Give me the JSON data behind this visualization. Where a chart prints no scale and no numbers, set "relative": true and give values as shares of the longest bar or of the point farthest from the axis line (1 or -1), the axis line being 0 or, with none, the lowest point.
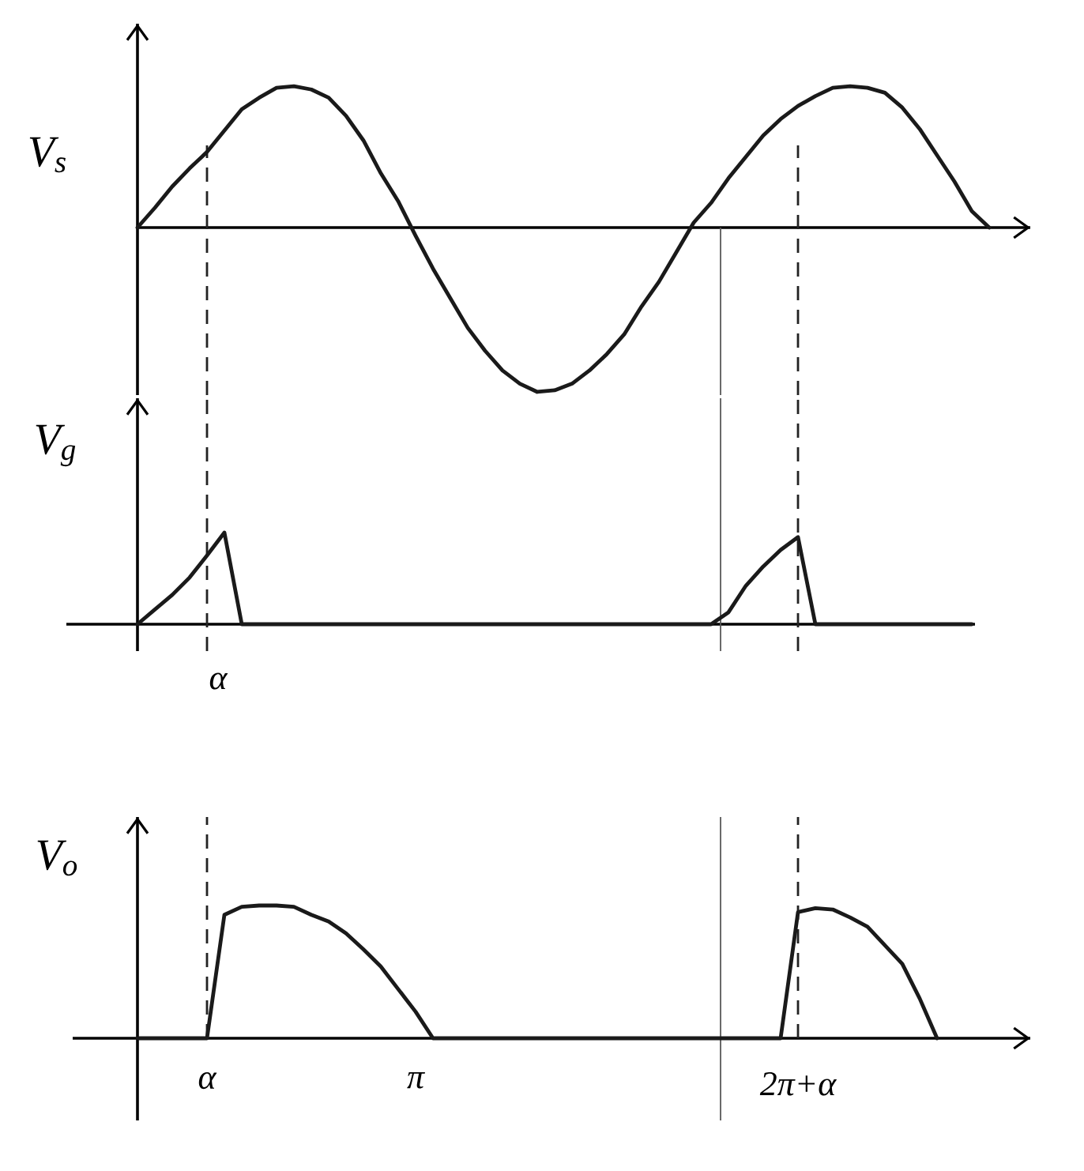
{
  "chart_data": [
    {
      "type": "line",
      "ylabel": "V$_{s}$",
      "relative": true,
      "tick_labels": false,
      "categories": [
        null,
        null,
        null,
        null,
        "α",
        null,
        null,
        null,
        null,
        null,
        null,
        null,
        null,
        null,
        null,
        null,
        "π",
        null,
        null,
        null,
        null,
        null,
        null,
        null,
        null,
        null,
        null,
        null,
        null,
        null,
        null,
        null,
        null,
        null,
        null,
        null,
        null,
        null,
        "2π+α",
        null,
        null,
        null,
        null,
        null,
        null,
        null,
        null,
        null,
        null,
        null,
        null,
        null
      ],
      "series": [
        {
          "color": "#1a1a1a",
          "values": [
            0,
            0.12,
            0.25,
            0.36,
            0.46,
            0.59,
            0.72,
            0.79,
            0.85,
            0.86,
            0.84,
            0.79,
            0.68,
            0.53,
            0.33,
            0.16,
            -0.05,
            -0.25,
            -0.43,
            -0.61,
            -0.75,
            -0.87,
            -0.95,
            -1,
            -0.99,
            -0.95,
            -0.87,
            -0.77,
            -0.65,
            -0.48,
            -0.33,
            -0.15,
            0.03,
            0.15,
            0.3,
            0.43,
            0.56,
            0.66,
            0.74,
            0.8,
            0.85,
            0.86,
            0.85,
            0.82,
            0.73,
            0.6,
            0.44,
            0.28,
            0.1,
            0,
            null,
            null
          ]
        }
      ],
      "ref_lines": [
        {
          "axis": "x",
          "value": "α",
          "line_style": "dashed",
          "color": "#222222"
        },
        {
          "axis": "x",
          "value": "2π+α",
          "line_style": "dashed",
          "color": "#222222"
        }
      ]
    },
    {
      "type": "line",
      "ylabel": "V$_{g}$",
      "relative": true,
      "tick_labels": false,
      "annotations": [
        "α"
      ],
      "categories": [
        null,
        null,
        null,
        null,
        "α",
        null,
        null,
        null,
        null,
        null,
        null,
        null,
        null,
        null,
        null,
        null,
        "π",
        null,
        null,
        null,
        null,
        null,
        null,
        null,
        null,
        null,
        null,
        null,
        null,
        null,
        null,
        null,
        null,
        null,
        null,
        null,
        null,
        null,
        "2π+α",
        null,
        null,
        null,
        null,
        null,
        null,
        null,
        null,
        null,
        null,
        null,
        null,
        null
      ],
      "series": [
        {
          "color": "#1a1a1a",
          "values": [
            0,
            0.16,
            0.32,
            0.51,
            0.75,
            1,
            0,
            0,
            0,
            0,
            0,
            0,
            0,
            0,
            0,
            0,
            0,
            0,
            0,
            0,
            0,
            0,
            0,
            0,
            0,
            0,
            0,
            0,
            0,
            0,
            0,
            0,
            0,
            0,
            0.13,
            0.42,
            0.63,
            0.81,
            0.95,
            0,
            0,
            0,
            0,
            0,
            0,
            0,
            0,
            0,
            0,
            null,
            null,
            null
          ]
        }
      ],
      "ref_lines": [
        {
          "axis": "x",
          "value": "α",
          "line_style": "dashed",
          "color": "#222222"
        },
        {
          "axis": "x",
          "value": "2π+α",
          "line_style": "dashed",
          "color": "#222222"
        }
      ]
    },
    {
      "type": "line",
      "ylabel": "V$_{o}$",
      "relative": true,
      "tick_labels": "x",
      "categories": [
        null,
        null,
        null,
        null,
        "α",
        null,
        null,
        null,
        null,
        null,
        null,
        null,
        null,
        null,
        null,
        null,
        "π",
        null,
        null,
        null,
        null,
        null,
        null,
        null,
        null,
        null,
        null,
        null,
        null,
        null,
        null,
        null,
        null,
        null,
        null,
        null,
        null,
        null,
        "2π+α",
        null,
        null,
        null,
        null,
        null,
        null,
        null,
        null,
        null,
        null,
        null,
        null,
        null
      ],
      "series": [
        {
          "color": "#1a1a1a",
          "values": [
            0,
            0,
            0,
            0,
            0,
            0.93,
            0.99,
            1,
            1,
            0.99,
            0.93,
            0.88,
            0.79,
            0.67,
            0.54,
            0.37,
            0.2,
            0,
            0,
            0,
            0,
            0,
            0,
            0,
            0,
            0,
            0,
            0,
            0,
            0,
            0,
            0,
            0,
            0,
            0,
            0,
            0,
            0,
            0.95,
            0.98,
            0.97,
            0.91,
            0.84,
            0.7,
            0.56,
            0.3,
            0,
            null,
            null,
            null,
            null,
            null
          ]
        }
      ],
      "ref_lines": [
        {
          "axis": "x",
          "value": "α",
          "line_style": "dashed",
          "color": "#222222"
        },
        {
          "axis": "x",
          "value": "2π+α",
          "line_style": "dashed",
          "color": "#222222"
        }
      ]
    }
  ]
}
